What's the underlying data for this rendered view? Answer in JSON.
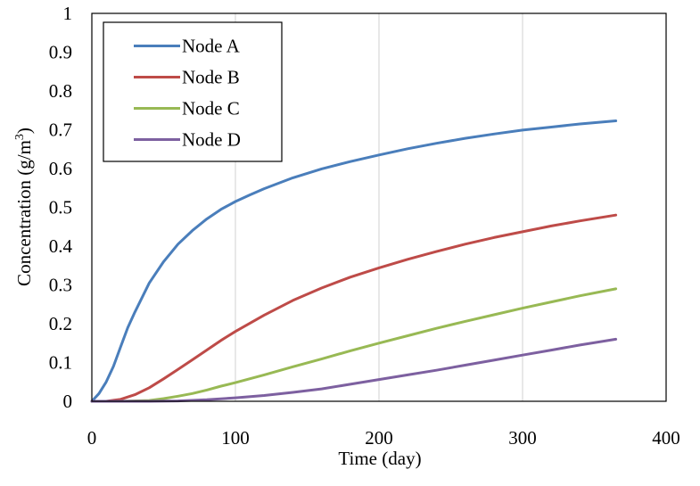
{
  "chart_data": {
    "type": "line",
    "title": "",
    "xlabel": "Time (day)",
    "ylabel": {
      "base": "Concentration (g/m",
      "sup": "3",
      "close": ")"
    },
    "xlim": [
      0,
      400
    ],
    "ylim": [
      0,
      1
    ],
    "xticks": [
      "0",
      "100",
      "200",
      "300",
      "400"
    ],
    "yticks": [
      "0",
      "0.1",
      "0.2",
      "0.3",
      "0.4",
      "0.5",
      "0.6",
      "0.7",
      "0.8",
      "0.9",
      "1"
    ],
    "grid": {
      "vertical": true,
      "horizontal": false,
      "color": "#d9d9d9"
    },
    "legend_position": "top-left",
    "series": [
      {
        "name": "Node A",
        "color": "#4a7ebb",
        "x": [
          0,
          5,
          10,
          15,
          20,
          25,
          30,
          40,
          50,
          60,
          70,
          80,
          90,
          100,
          110,
          120,
          140,
          160,
          180,
          200,
          220,
          240,
          260,
          280,
          300,
          320,
          340,
          365
        ],
        "y": [
          0,
          0.02,
          0.05,
          0.09,
          0.14,
          0.19,
          0.23,
          0.305,
          0.36,
          0.405,
          0.44,
          0.47,
          0.495,
          0.515,
          0.532,
          0.548,
          0.576,
          0.599,
          0.618,
          0.635,
          0.651,
          0.665,
          0.678,
          0.689,
          0.699,
          0.707,
          0.715,
          0.723
        ]
      },
      {
        "name": "Node B",
        "color": "#be4b48",
        "x": [
          0,
          10,
          20,
          30,
          40,
          50,
          60,
          70,
          80,
          90,
          100,
          120,
          140,
          160,
          180,
          200,
          220,
          240,
          260,
          280,
          300,
          320,
          340,
          365
        ],
        "y": [
          0,
          0,
          0.005,
          0.017,
          0.035,
          0.058,
          0.082,
          0.107,
          0.132,
          0.157,
          0.18,
          0.222,
          0.26,
          0.292,
          0.32,
          0.344,
          0.366,
          0.386,
          0.405,
          0.422,
          0.437,
          0.452,
          0.465,
          0.48
        ]
      },
      {
        "name": "Node C",
        "color": "#98b954",
        "x": [
          0,
          20,
          40,
          50,
          60,
          70,
          80,
          90,
          100,
          120,
          140,
          160,
          180,
          200,
          220,
          240,
          260,
          280,
          300,
          320,
          340,
          365
        ],
        "y": [
          0,
          0,
          0.002,
          0.007,
          0.013,
          0.02,
          0.029,
          0.039,
          0.048,
          0.068,
          0.089,
          0.109,
          0.13,
          0.15,
          0.169,
          0.188,
          0.206,
          0.223,
          0.24,
          0.256,
          0.272,
          0.29
        ]
      },
      {
        "name": "Node D",
        "color": "#7d60a0",
        "x": [
          0,
          40,
          60,
          80,
          100,
          120,
          140,
          160,
          180,
          200,
          220,
          240,
          260,
          280,
          300,
          320,
          340,
          365
        ],
        "y": [
          0,
          0,
          0.001,
          0.004,
          0.009,
          0.015,
          0.023,
          0.032,
          0.044,
          0.056,
          0.068,
          0.08,
          0.093,
          0.106,
          0.119,
          0.132,
          0.145,
          0.16
        ]
      }
    ]
  }
}
